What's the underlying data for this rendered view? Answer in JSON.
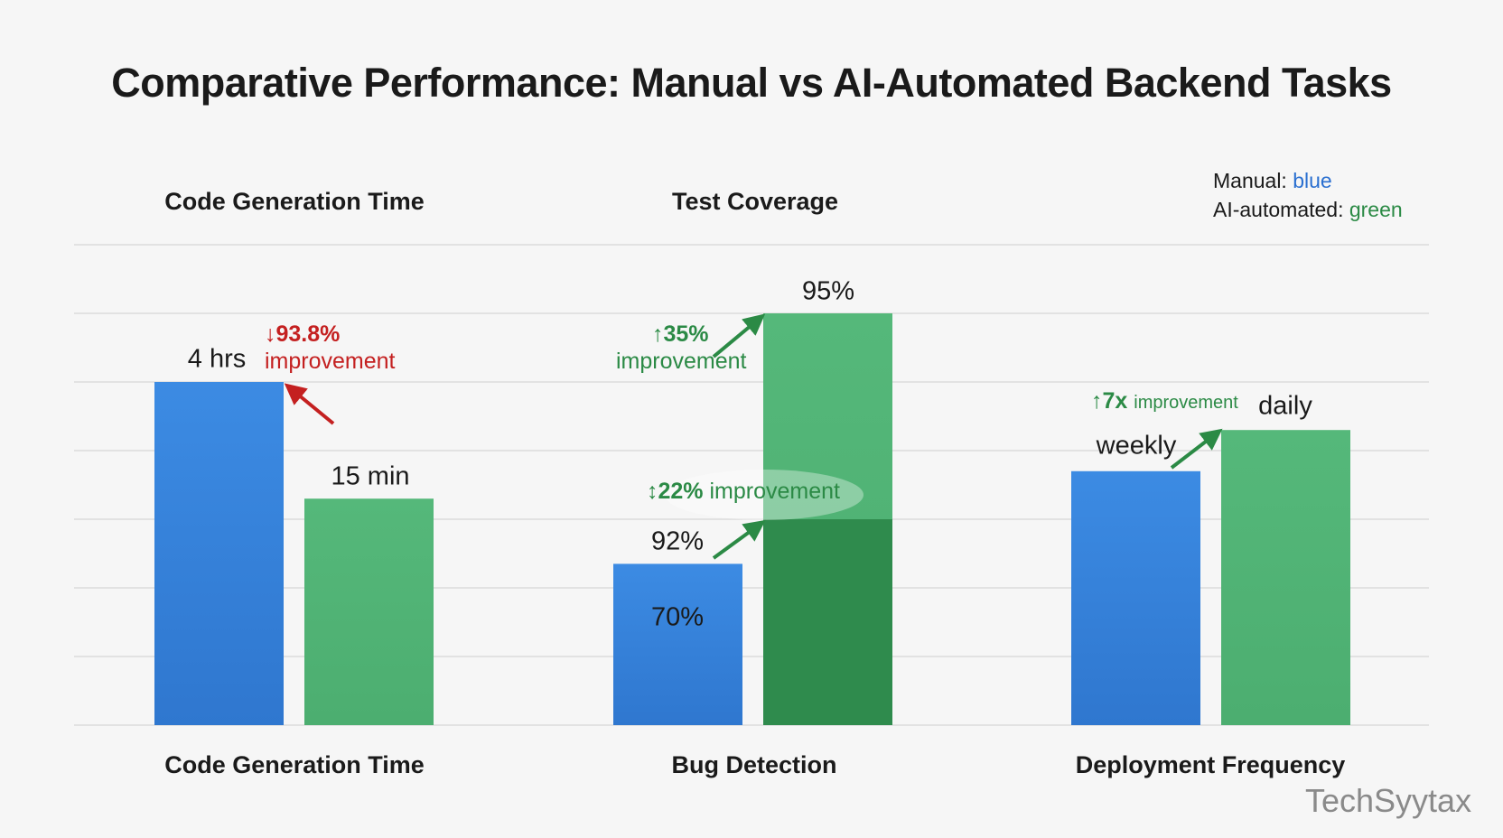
{
  "title": "Comparative Performance: Manual vs AI-Automated Backend Tasks",
  "top_labels": [
    "Code Generation Time",
    "Test Coverage"
  ],
  "legend": {
    "manual_label": "Manual:",
    "manual_color_word": "blue",
    "ai_label": "AI-automated:",
    "ai_color_word": "green"
  },
  "colors": {
    "manual": "#3a86de",
    "ai": "#52b475",
    "ai_dark": "#2f8b4d",
    "decrease": "#c42020",
    "increase": "#2b8a45",
    "grid": "#dcdcdc"
  },
  "watermark": "TechSyytax",
  "chart_data": {
    "type": "bar",
    "title": "Comparative Performance: Manual vs AI-Automated Backend Tasks",
    "categories": [
      "Code Generation Time",
      "Bug Detection",
      "Deployment Frequency"
    ],
    "grid": true,
    "ylim": [
      0,
      7
    ],
    "series": [
      {
        "name": "Manual",
        "color": "#3a86de",
        "values": [
          5.0,
          2.35,
          3.7
        ],
        "labels": [
          "4 hrs",
          "70%",
          "weekly"
        ]
      },
      {
        "name": "AI-automated",
        "color": "#52b475",
        "values": [
          3.3,
          6.0,
          4.3
        ],
        "labels": [
          "15 min",
          "95%",
          "daily"
        ]
      }
    ],
    "stacked_segment": {
      "category": "Bug Detection",
      "series": "AI-automated",
      "value": 3.0,
      "label": "92%",
      "color": "#2f8b4d"
    },
    "annotations": [
      {
        "category": "Code Generation Time",
        "arrow": "↓",
        "value": "93.8%",
        "text": "improvement"
      },
      {
        "category": "Bug Detection",
        "arrow": "↑",
        "value": "35%",
        "text": "improvement"
      },
      {
        "category": "Bug Detection",
        "arrow": "↕",
        "value": "22%",
        "text": "improvement"
      },
      {
        "category": "Deployment Frequency",
        "arrow": "↑",
        "value": "7x",
        "text": "improvement"
      }
    ]
  }
}
